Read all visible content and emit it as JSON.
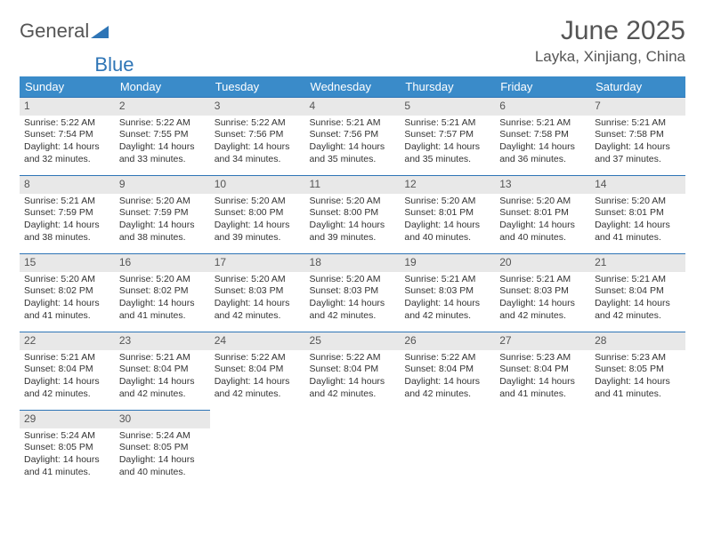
{
  "logo": {
    "text1": "General",
    "text2": "Blue"
  },
  "title": "June 2025",
  "location": "Layka, Xinjiang, China",
  "colors": {
    "header_bg": "#3a8bc9",
    "header_fg": "#ffffff",
    "daynum_bg": "#e8e8e8",
    "border": "#2e75b6",
    "text": "#333333",
    "logo_gray": "#555555",
    "logo_blue": "#2e75b6"
  },
  "weekdays": [
    "Sunday",
    "Monday",
    "Tuesday",
    "Wednesday",
    "Thursday",
    "Friday",
    "Saturday"
  ],
  "weeks": [
    [
      {
        "d": "1",
        "sr": "5:22 AM",
        "ss": "7:54 PM",
        "dl": "14 hours and 32 minutes."
      },
      {
        "d": "2",
        "sr": "5:22 AM",
        "ss": "7:55 PM",
        "dl": "14 hours and 33 minutes."
      },
      {
        "d": "3",
        "sr": "5:22 AM",
        "ss": "7:56 PM",
        "dl": "14 hours and 34 minutes."
      },
      {
        "d": "4",
        "sr": "5:21 AM",
        "ss": "7:56 PM",
        "dl": "14 hours and 35 minutes."
      },
      {
        "d": "5",
        "sr": "5:21 AM",
        "ss": "7:57 PM",
        "dl": "14 hours and 35 minutes."
      },
      {
        "d": "6",
        "sr": "5:21 AM",
        "ss": "7:58 PM",
        "dl": "14 hours and 36 minutes."
      },
      {
        "d": "7",
        "sr": "5:21 AM",
        "ss": "7:58 PM",
        "dl": "14 hours and 37 minutes."
      }
    ],
    [
      {
        "d": "8",
        "sr": "5:21 AM",
        "ss": "7:59 PM",
        "dl": "14 hours and 38 minutes."
      },
      {
        "d": "9",
        "sr": "5:20 AM",
        "ss": "7:59 PM",
        "dl": "14 hours and 38 minutes."
      },
      {
        "d": "10",
        "sr": "5:20 AM",
        "ss": "8:00 PM",
        "dl": "14 hours and 39 minutes."
      },
      {
        "d": "11",
        "sr": "5:20 AM",
        "ss": "8:00 PM",
        "dl": "14 hours and 39 minutes."
      },
      {
        "d": "12",
        "sr": "5:20 AM",
        "ss": "8:01 PM",
        "dl": "14 hours and 40 minutes."
      },
      {
        "d": "13",
        "sr": "5:20 AM",
        "ss": "8:01 PM",
        "dl": "14 hours and 40 minutes."
      },
      {
        "d": "14",
        "sr": "5:20 AM",
        "ss": "8:01 PM",
        "dl": "14 hours and 41 minutes."
      }
    ],
    [
      {
        "d": "15",
        "sr": "5:20 AM",
        "ss": "8:02 PM",
        "dl": "14 hours and 41 minutes."
      },
      {
        "d": "16",
        "sr": "5:20 AM",
        "ss": "8:02 PM",
        "dl": "14 hours and 41 minutes."
      },
      {
        "d": "17",
        "sr": "5:20 AM",
        "ss": "8:03 PM",
        "dl": "14 hours and 42 minutes."
      },
      {
        "d": "18",
        "sr": "5:20 AM",
        "ss": "8:03 PM",
        "dl": "14 hours and 42 minutes."
      },
      {
        "d": "19",
        "sr": "5:21 AM",
        "ss": "8:03 PM",
        "dl": "14 hours and 42 minutes."
      },
      {
        "d": "20",
        "sr": "5:21 AM",
        "ss": "8:03 PM",
        "dl": "14 hours and 42 minutes."
      },
      {
        "d": "21",
        "sr": "5:21 AM",
        "ss": "8:04 PM",
        "dl": "14 hours and 42 minutes."
      }
    ],
    [
      {
        "d": "22",
        "sr": "5:21 AM",
        "ss": "8:04 PM",
        "dl": "14 hours and 42 minutes."
      },
      {
        "d": "23",
        "sr": "5:21 AM",
        "ss": "8:04 PM",
        "dl": "14 hours and 42 minutes."
      },
      {
        "d": "24",
        "sr": "5:22 AM",
        "ss": "8:04 PM",
        "dl": "14 hours and 42 minutes."
      },
      {
        "d": "25",
        "sr": "5:22 AM",
        "ss": "8:04 PM",
        "dl": "14 hours and 42 minutes."
      },
      {
        "d": "26",
        "sr": "5:22 AM",
        "ss": "8:04 PM",
        "dl": "14 hours and 42 minutes."
      },
      {
        "d": "27",
        "sr": "5:23 AM",
        "ss": "8:04 PM",
        "dl": "14 hours and 41 minutes."
      },
      {
        "d": "28",
        "sr": "5:23 AM",
        "ss": "8:05 PM",
        "dl": "14 hours and 41 minutes."
      }
    ],
    [
      {
        "d": "29",
        "sr": "5:24 AM",
        "ss": "8:05 PM",
        "dl": "14 hours and 41 minutes."
      },
      {
        "d": "30",
        "sr": "5:24 AM",
        "ss": "8:05 PM",
        "dl": "14 hours and 40 minutes."
      },
      null,
      null,
      null,
      null,
      null
    ]
  ],
  "labels": {
    "sunrise": "Sunrise: ",
    "sunset": "Sunset: ",
    "daylight": "Daylight: "
  }
}
